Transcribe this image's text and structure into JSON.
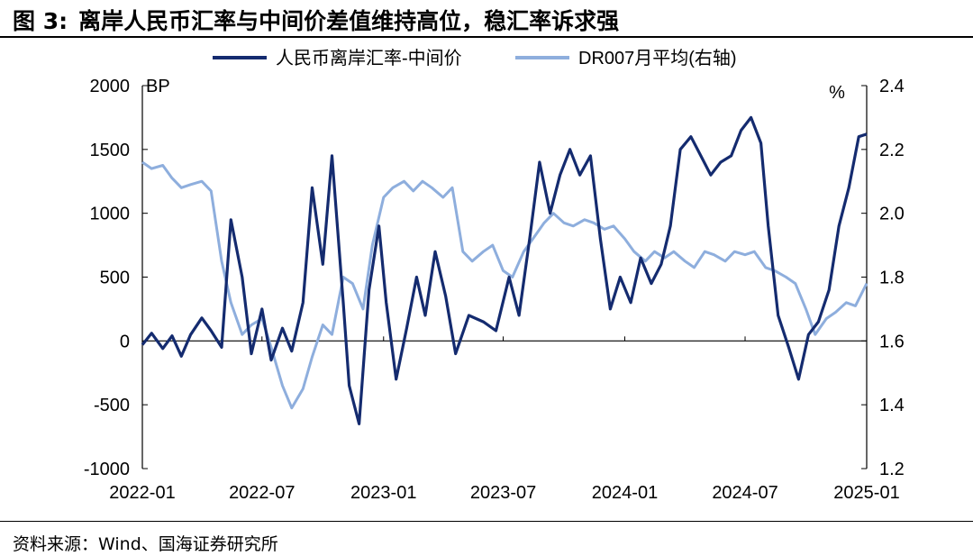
{
  "header": {
    "figure_label": "图 3:",
    "title": "离岸人民币汇率与中间价差值维持高位，稳汇率诉求强"
  },
  "source": "资料来源：Wind、国海证券研究所",
  "colors": {
    "series1": "#142b6f",
    "series2": "#8eaedd",
    "axis": "#000000"
  },
  "chart_data": {
    "type": "line",
    "title": "离岸人民币汇率与中间价差值维持高位，稳汇率诉求强",
    "y_left": {
      "unit": "BP",
      "ylim": [
        -1000,
        2000
      ],
      "ticks": [
        "2000",
        "1500",
        "1000",
        "500",
        "0",
        "-500",
        "-1000"
      ]
    },
    "y_right": {
      "unit": "%",
      "ylim": [
        1.2,
        2.4
      ],
      "ticks": [
        "2.4",
        "2.2",
        "2.0",
        "1.8",
        "1.6",
        "1.4",
        "1.2"
      ]
    },
    "x_ticks": [
      "2022-01",
      "2022-07",
      "2023-01",
      "2023-07",
      "2024-01",
      "2024-07",
      "2025-01"
    ],
    "xlim": [
      "2022-01",
      "2025-01"
    ],
    "grid": false,
    "legend_position": "top",
    "series": [
      {
        "name": "人民币离岸汇率-中间价",
        "axis": "left",
        "color": "#142b6f",
        "points": [
          [
            "2022-01-01",
            -30
          ],
          [
            "2022-01-15",
            60
          ],
          [
            "2022-02-01",
            -60
          ],
          [
            "2022-02-15",
            40
          ],
          [
            "2022-03-01",
            -120
          ],
          [
            "2022-03-15",
            50
          ],
          [
            "2022-04-01",
            180
          ],
          [
            "2022-04-15",
            80
          ],
          [
            "2022-05-01",
            -50
          ],
          [
            "2022-05-15",
            950
          ],
          [
            "2022-06-01",
            500
          ],
          [
            "2022-06-15",
            -100
          ],
          [
            "2022-07-01",
            250
          ],
          [
            "2022-07-15",
            -150
          ],
          [
            "2022-08-01",
            100
          ],
          [
            "2022-08-15",
            -80
          ],
          [
            "2022-09-01",
            300
          ],
          [
            "2022-09-15",
            1200
          ],
          [
            "2022-10-01",
            600
          ],
          [
            "2022-10-15",
            1450
          ],
          [
            "2022-11-01",
            300
          ],
          [
            "2022-11-10",
            -350
          ],
          [
            "2022-11-25",
            -650
          ],
          [
            "2022-12-10",
            400
          ],
          [
            "2022-12-25",
            900
          ],
          [
            "2023-01-05",
            300
          ],
          [
            "2023-01-20",
            -300
          ],
          [
            "2023-02-05",
            100
          ],
          [
            "2023-02-20",
            500
          ],
          [
            "2023-03-05",
            200
          ],
          [
            "2023-03-20",
            700
          ],
          [
            "2023-04-05",
            350
          ],
          [
            "2023-04-20",
            -100
          ],
          [
            "2023-05-10",
            200
          ],
          [
            "2023-06-01",
            150
          ],
          [
            "2023-06-20",
            80
          ],
          [
            "2023-07-10",
            500
          ],
          [
            "2023-07-25",
            200
          ],
          [
            "2023-08-10",
            800
          ],
          [
            "2023-08-25",
            1400
          ],
          [
            "2023-09-10",
            1000
          ],
          [
            "2023-09-25",
            1300
          ],
          [
            "2023-10-10",
            1500
          ],
          [
            "2023-10-25",
            1300
          ],
          [
            "2023-11-10",
            1450
          ],
          [
            "2023-11-25",
            800
          ],
          [
            "2023-12-10",
            250
          ],
          [
            "2023-12-25",
            500
          ],
          [
            "2024-01-10",
            300
          ],
          [
            "2024-01-25",
            650
          ],
          [
            "2024-02-10",
            450
          ],
          [
            "2024-02-25",
            600
          ],
          [
            "2024-03-10",
            900
          ],
          [
            "2024-03-25",
            1500
          ],
          [
            "2024-04-10",
            1600
          ],
          [
            "2024-04-25",
            1450
          ],
          [
            "2024-05-10",
            1300
          ],
          [
            "2024-05-25",
            1400
          ],
          [
            "2024-06-10",
            1450
          ],
          [
            "2024-06-25",
            1650
          ],
          [
            "2024-07-10",
            1750
          ],
          [
            "2024-07-25",
            1550
          ],
          [
            "2024-08-05",
            900
          ],
          [
            "2024-08-20",
            200
          ],
          [
            "2024-09-05",
            -50
          ],
          [
            "2024-09-20",
            -300
          ],
          [
            "2024-10-05",
            50
          ],
          [
            "2024-10-20",
            150
          ],
          [
            "2024-11-05",
            400
          ],
          [
            "2024-11-20",
            900
          ],
          [
            "2024-12-05",
            1200
          ],
          [
            "2024-12-20",
            1600
          ],
          [
            "2025-01-01",
            1620
          ]
        ]
      },
      {
        "name": "DR007月平均(右轴)",
        "axis": "right",
        "color": "#8eaedd",
        "points": [
          [
            "2022-01-01",
            2.16
          ],
          [
            "2022-01-15",
            2.14
          ],
          [
            "2022-02-01",
            2.15
          ],
          [
            "2022-02-15",
            2.11
          ],
          [
            "2022-03-01",
            2.08
          ],
          [
            "2022-03-15",
            2.09
          ],
          [
            "2022-04-01",
            2.1
          ],
          [
            "2022-04-15",
            2.07
          ],
          [
            "2022-05-01",
            1.85
          ],
          [
            "2022-05-15",
            1.72
          ],
          [
            "2022-06-01",
            1.62
          ],
          [
            "2022-06-15",
            1.65
          ],
          [
            "2022-07-01",
            1.67
          ],
          [
            "2022-07-15",
            1.58
          ],
          [
            "2022-08-01",
            1.46
          ],
          [
            "2022-08-15",
            1.39
          ],
          [
            "2022-09-01",
            1.45
          ],
          [
            "2022-09-15",
            1.55
          ],
          [
            "2022-10-01",
            1.65
          ],
          [
            "2022-10-15",
            1.62
          ],
          [
            "2022-11-01",
            1.8
          ],
          [
            "2022-11-15",
            1.78
          ],
          [
            "2022-12-01",
            1.7
          ],
          [
            "2022-12-15",
            1.9
          ],
          [
            "2023-01-01",
            2.05
          ],
          [
            "2023-01-15",
            2.08
          ],
          [
            "2023-02-01",
            2.1
          ],
          [
            "2023-02-15",
            2.07
          ],
          [
            "2023-03-01",
            2.1
          ],
          [
            "2023-03-15",
            2.08
          ],
          [
            "2023-04-01",
            2.05
          ],
          [
            "2023-04-15",
            2.08
          ],
          [
            "2023-05-01",
            1.88
          ],
          [
            "2023-05-15",
            1.85
          ],
          [
            "2023-06-01",
            1.88
          ],
          [
            "2023-06-15",
            1.9
          ],
          [
            "2023-07-01",
            1.82
          ],
          [
            "2023-07-15",
            1.8
          ],
          [
            "2023-08-01",
            1.88
          ],
          [
            "2023-08-15",
            1.92
          ],
          [
            "2023-09-01",
            1.97
          ],
          [
            "2023-09-15",
            2.0
          ],
          [
            "2023-10-01",
            1.97
          ],
          [
            "2023-10-15",
            1.96
          ],
          [
            "2023-11-01",
            1.98
          ],
          [
            "2023-11-15",
            1.97
          ],
          [
            "2023-12-01",
            1.95
          ],
          [
            "2023-12-15",
            1.96
          ],
          [
            "2024-01-01",
            1.92
          ],
          [
            "2024-01-15",
            1.88
          ],
          [
            "2024-02-01",
            1.85
          ],
          [
            "2024-02-15",
            1.88
          ],
          [
            "2024-03-01",
            1.86
          ],
          [
            "2024-03-15",
            1.88
          ],
          [
            "2024-04-01",
            1.85
          ],
          [
            "2024-04-15",
            1.83
          ],
          [
            "2024-05-01",
            1.88
          ],
          [
            "2024-05-15",
            1.87
          ],
          [
            "2024-06-01",
            1.85
          ],
          [
            "2024-06-15",
            1.88
          ],
          [
            "2024-07-01",
            1.87
          ],
          [
            "2024-07-15",
            1.88
          ],
          [
            "2024-08-01",
            1.83
          ],
          [
            "2024-08-15",
            1.82
          ],
          [
            "2024-09-01",
            1.8
          ],
          [
            "2024-09-15",
            1.78
          ],
          [
            "2024-10-01",
            1.7
          ],
          [
            "2024-10-15",
            1.62
          ],
          [
            "2024-11-01",
            1.67
          ],
          [
            "2024-11-15",
            1.69
          ],
          [
            "2024-12-01",
            1.72
          ],
          [
            "2024-12-15",
            1.71
          ],
          [
            "2025-01-01",
            1.78
          ]
        ]
      }
    ]
  }
}
